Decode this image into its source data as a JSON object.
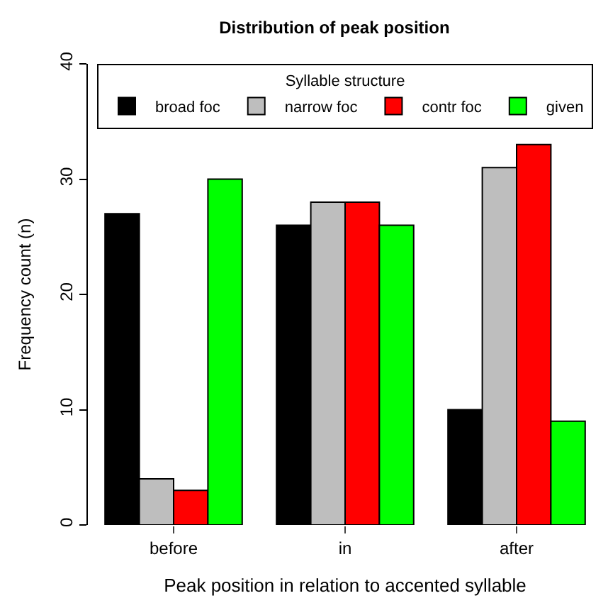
{
  "chart_data": {
    "type": "bar",
    "title": "Distribution of peak position",
    "xlabel": "Peak position in relation to accented syllable",
    "ylabel": "Frequency count (n)",
    "legend_title": "Syllable structure",
    "categories": [
      "before",
      "in",
      "after"
    ],
    "series": [
      {
        "name": "broad foc",
        "color": "#000000",
        "values": [
          27,
          26,
          10
        ]
      },
      {
        "name": "narrow foc",
        "color": "#bebebe",
        "values": [
          4,
          28,
          31
        ]
      },
      {
        "name": "contr foc",
        "color": "#ff0000",
        "values": [
          3,
          28,
          33
        ]
      },
      {
        "name": "given",
        "color": "#00ff00",
        "values": [
          30,
          26,
          9
        ]
      }
    ],
    "ylim": [
      0,
      40
    ],
    "yticks": [
      0,
      10,
      20,
      30,
      40
    ],
    "grid": false,
    "legend": "top"
  }
}
